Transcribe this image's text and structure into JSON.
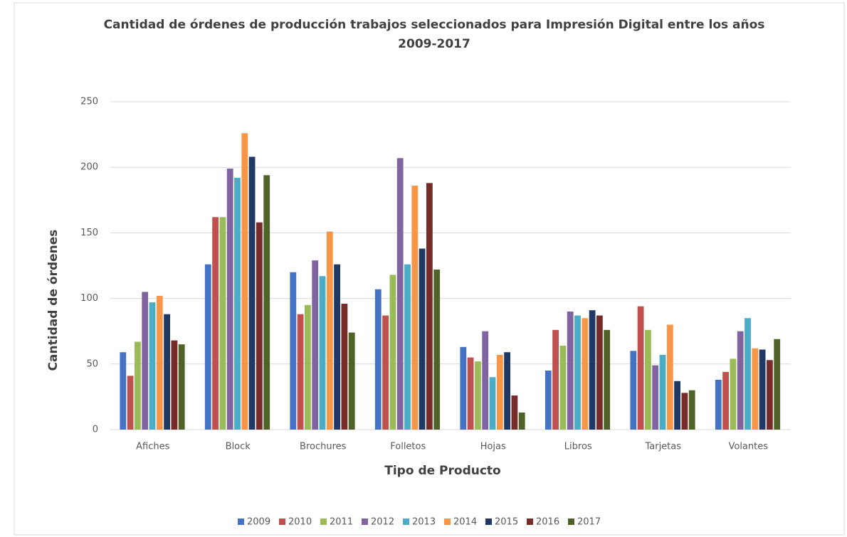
{
  "chart_data": {
    "type": "bar",
    "title": "Cantidad de órdenes de producción trabajos seleccionados para Impresión Digital entre los años 2009-2017",
    "x_label": "Tipo de Producto",
    "y_label": "Cantidad de órdenes",
    "categories": [
      "Afiches",
      "Block",
      "Brochures",
      "Folletos",
      "Hojas",
      "Libros",
      "Tarjetas",
      "Volantes"
    ],
    "series": [
      {
        "name": "2009",
        "color": "#4472c4",
        "values": [
          59,
          126,
          120,
          107,
          63,
          45,
          60,
          38
        ]
      },
      {
        "name": "2010",
        "color": "#c0504d",
        "values": [
          41,
          162,
          88,
          87,
          55,
          76,
          94,
          44
        ]
      },
      {
        "name": "2011",
        "color": "#9bbb59",
        "values": [
          67,
          162,
          95,
          118,
          52,
          64,
          76,
          54
        ]
      },
      {
        "name": "2012",
        "color": "#8064a2",
        "values": [
          105,
          199,
          129,
          207,
          75,
          90,
          49,
          75
        ]
      },
      {
        "name": "2013",
        "color": "#4bacc6",
        "values": [
          97,
          192,
          117,
          126,
          40,
          87,
          57,
          85
        ]
      },
      {
        "name": "2014",
        "color": "#f79646",
        "values": [
          102,
          226,
          151,
          186,
          57,
          85,
          80,
          62
        ]
      },
      {
        "name": "2015",
        "color": "#1f3864",
        "values": [
          88,
          208,
          126,
          138,
          59,
          91,
          37,
          61
        ]
      },
      {
        "name": "2016",
        "color": "#772c2a",
        "values": [
          68,
          158,
          96,
          188,
          26,
          87,
          28,
          53
        ]
      },
      {
        "name": "2017",
        "color": "#4f6228",
        "values": [
          65,
          194,
          74,
          122,
          13,
          76,
          30,
          69
        ]
      }
    ],
    "ylim": [
      0,
      250
    ],
    "yticks": [
      0,
      50,
      100,
      150,
      200,
      250
    ],
    "grid": true
  }
}
